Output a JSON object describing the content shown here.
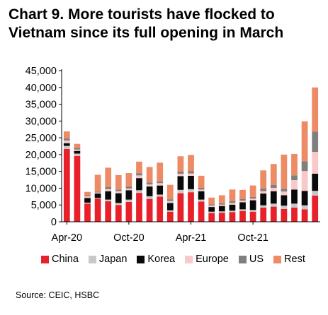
{
  "title": "Chart 9. More tourists have flocked to Vietnam since its full opening in March",
  "source": "Source: CEIC, HSBC",
  "chart_data": {
    "type": "bar",
    "stacked": true,
    "categories": [
      "Apr-20",
      "May-20",
      "Jun-20",
      "Jul-20",
      "Aug-20",
      "Sep-20",
      "Oct-20",
      "Nov-20",
      "Dec-20",
      "Jan-21",
      "Feb-21",
      "Mar-21",
      "Apr-21",
      "May-21",
      "Jun-21",
      "Jul-21",
      "Aug-21",
      "Sep-21",
      "Oct-21",
      "Nov-21",
      "Dec-21",
      "Jan-22",
      "Feb-22",
      "Mar-22",
      "Apr-22"
    ],
    "tick_labels": [
      "Apr-20",
      "",
      "",
      "",
      "",
      "",
      "Oct-20",
      "",
      "",
      "",
      "",
      "",
      "Apr-21",
      "",
      "",
      "",
      "",
      "",
      "Oct-21",
      "",
      "",
      "",
      "",
      "",
      ""
    ],
    "ylim": [
      0,
      45000
    ],
    "yticks": [
      0,
      5000,
      10000,
      15000,
      20000,
      25000,
      30000,
      35000,
      40000,
      45000
    ],
    "ytick_labels": [
      "0",
      "5,000",
      "10,000",
      "15,000",
      "20,000",
      "25,000",
      "30,000",
      "35,000",
      "40,000",
      "45,000"
    ],
    "series": [
      {
        "name": "China",
        "color": "#e8202a",
        "values": [
          21700,
          19600,
          5400,
          6900,
          6100,
          5000,
          5900,
          8600,
          6800,
          7500,
          3000,
          8500,
          8800,
          6000,
          2600,
          2700,
          2900,
          3200,
          3000,
          4200,
          4500,
          3800,
          4200,
          3700,
          7800
        ]
      },
      {
        "name": "Japan",
        "color": "#c8c8c8",
        "values": [
          900,
          700,
          300,
          200,
          500,
          600,
          700,
          800,
          800,
          600,
          400,
          1000,
          900,
          600,
          400,
          400,
          400,
          500,
          500,
          700,
          900,
          1000,
          1200,
          1200,
          1400
        ]
      },
      {
        "name": "Korea",
        "color": "#0a0a0a",
        "values": [
          800,
          800,
          1400,
          1300,
          2500,
          2900,
          2800,
          3600,
          2900,
          2700,
          2200,
          4100,
          4000,
          2500,
          1400,
          1600,
          1800,
          2100,
          2900,
          3500,
          3700,
          3100,
          4200,
          4300,
          5100
        ]
      },
      {
        "name": "Europe",
        "color": "#f9c9ca",
        "values": [
          800,
          400,
          500,
          300,
          600,
          600,
          500,
          800,
          600,
          700,
          600,
          700,
          700,
          500,
          400,
          400,
          500,
          500,
          500,
          700,
          1000,
          1100,
          2800,
          5900,
          6500
        ]
      },
      {
        "name": "US",
        "color": "#7f7f7f",
        "values": [
          600,
          500,
          300,
          300,
          600,
          500,
          600,
          600,
          600,
          500,
          500,
          700,
          700,
          500,
          400,
          400,
          500,
          500,
          500,
          800,
          900,
          800,
          1400,
          2900,
          6000
        ]
      },
      {
        "name": "Rest",
        "color": "#ed8b66",
        "values": [
          2100,
          1200,
          1000,
          5000,
          5800,
          4300,
          4000,
          3500,
          4600,
          5600,
          4300,
          4500,
          4800,
          3600,
          2000,
          2400,
          3500,
          2700,
          3400,
          5400,
          6200,
          10200,
          6400,
          11900,
          13200
        ]
      }
    ]
  }
}
